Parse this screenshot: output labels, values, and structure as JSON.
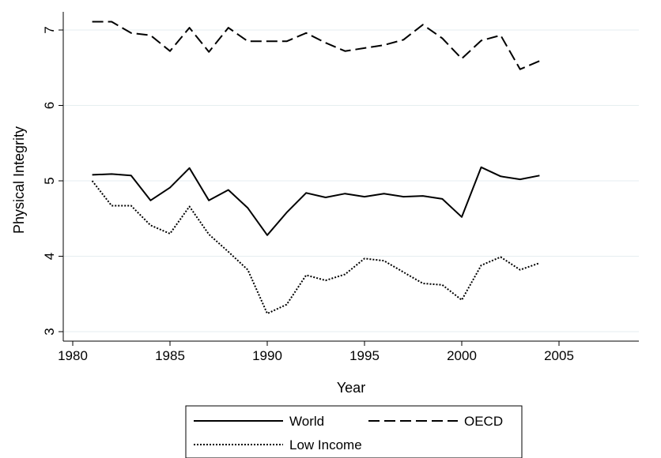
{
  "chart_data": {
    "type": "line",
    "title": "",
    "xlabel": "Year",
    "ylabel": "Physical Integrity",
    "xlim": [
      1980,
      2005
    ],
    "ylim": [
      3,
      7
    ],
    "xticks": [
      1980,
      1985,
      1990,
      1995,
      2000,
      2005
    ],
    "yticks": [
      3,
      4,
      5,
      6,
      7
    ],
    "grid": true,
    "legend_position": "bottom",
    "x": [
      1981,
      1982,
      1983,
      1984,
      1985,
      1986,
      1987,
      1988,
      1989,
      1990,
      1991,
      1992,
      1993,
      1994,
      1995,
      1996,
      1997,
      1998,
      1999,
      2000,
      2001,
      2002,
      2003,
      2004
    ],
    "series": [
      {
        "name": "World",
        "style": "solid",
        "values": [
          5.08,
          5.09,
          5.07,
          4.74,
          4.91,
          5.17,
          4.74,
          4.88,
          4.64,
          4.28,
          4.58,
          4.84,
          4.78,
          4.83,
          4.79,
          4.83,
          4.79,
          4.8,
          4.76,
          4.52,
          5.18,
          5.06,
          5.02,
          5.07
        ]
      },
      {
        "name": "OECD",
        "style": "dashed",
        "values": [
          7.11,
          7.11,
          6.96,
          6.93,
          6.72,
          7.03,
          6.71,
          7.03,
          6.85,
          6.85,
          6.85,
          6.96,
          6.83,
          6.72,
          6.76,
          6.8,
          6.87,
          7.07,
          6.89,
          6.62,
          6.86,
          6.93,
          6.48,
          6.59
        ]
      },
      {
        "name": "Low Income",
        "style": "dotted",
        "values": [
          5.0,
          4.67,
          4.67,
          4.41,
          4.3,
          4.66,
          4.29,
          4.06,
          3.82,
          3.24,
          3.36,
          3.75,
          3.68,
          3.76,
          3.97,
          3.94,
          3.79,
          3.64,
          3.62,
          3.42,
          3.88,
          3.99,
          3.82,
          3.91
        ]
      }
    ]
  }
}
